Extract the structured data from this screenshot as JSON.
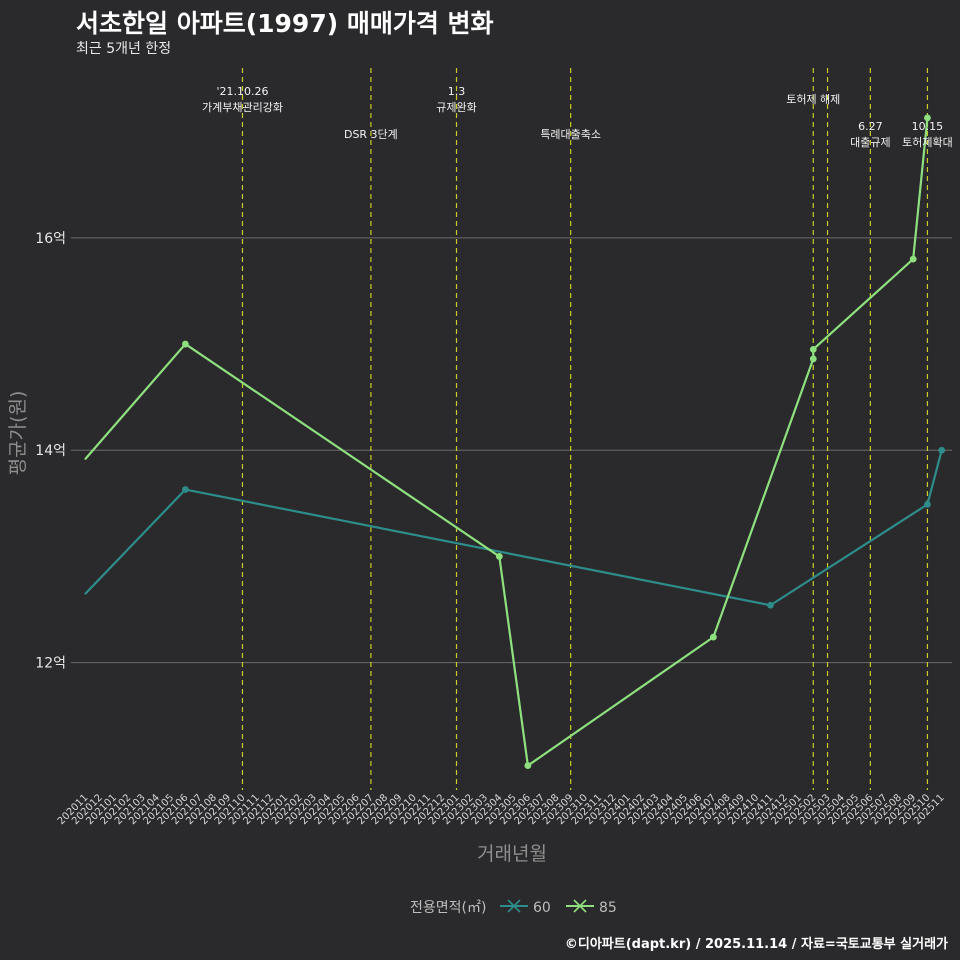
{
  "header": {
    "title": "서초한일 아파트(1997) 매매가격 변화",
    "subtitle": "최근 5개년 한정"
  },
  "caption": "©디아파트(dapt.kr) / 2025.11.14 / 자료=국토교통부 실거래가",
  "colors": {
    "background": "#2a2a2c",
    "grid": "#6a6a6a",
    "event_line": "#c8cc2a",
    "series_60": "#2e8c8a",
    "series_85": "#8ee07e"
  },
  "chart_data": {
    "type": "line",
    "title": "서초한일 아파트(1997) 매매가격 변화",
    "subtitle": "최근 5개년 한정",
    "xlabel": "거래년월",
    "ylabel": "평균가(원)",
    "categories": [
      "202011",
      "202012",
      "202101",
      "202102",
      "202103",
      "202104",
      "202105",
      "202106",
      "202107",
      "202108",
      "202109",
      "202110",
      "202111",
      "202112",
      "202201",
      "202202",
      "202203",
      "202204",
      "202205",
      "202206",
      "202207",
      "202208",
      "202209",
      "202210",
      "202211",
      "202212",
      "202301",
      "202302",
      "202303",
      "202304",
      "202305",
      "202306",
      "202307",
      "202308",
      "202309",
      "202310",
      "202311",
      "202312",
      "202401",
      "202402",
      "202403",
      "202404",
      "202405",
      "202406",
      "202407",
      "202408",
      "202409",
      "202410",
      "202411",
      "202412",
      "202501",
      "202502",
      "202503",
      "202504",
      "202505",
      "202506",
      "202507",
      "202508",
      "202509",
      "202510",
      "202511"
    ],
    "ylim": [
      10.8,
      17.6
    ],
    "yticks": [
      12,
      14,
      16
    ],
    "ytick_labels": [
      "12억",
      "14억",
      "16억"
    ],
    "grid": true,
    "legend": {
      "title": "전용면적(㎡)",
      "position": "bottom",
      "entries": [
        "60",
        "85"
      ]
    },
    "series": [
      {
        "name": "60",
        "color": "#2e8c8a",
        "points": [
          {
            "x": "202011",
            "y": 12.65,
            "marker": false
          },
          {
            "x": "202106",
            "y": 13.63,
            "marker": true
          },
          {
            "x": "202411",
            "y": 12.54,
            "marker": true
          },
          {
            "x": "202510",
            "y": 13.49,
            "marker": true
          },
          {
            "x": "202511",
            "y": 14.0,
            "marker": true
          }
        ]
      },
      {
        "name": "85",
        "color": "#8ee07e",
        "points": [
          {
            "x": "202011",
            "y": 13.92,
            "marker": false
          },
          {
            "x": "202106",
            "y": 15.0,
            "marker": true
          },
          {
            "x": "202304",
            "y": 13.0,
            "marker": true
          },
          {
            "x": "202306",
            "y": 11.03,
            "marker": true
          },
          {
            "x": "202407",
            "y": 12.24,
            "marker": true
          },
          {
            "x": "202502",
            "y": 14.86,
            "marker": true
          },
          {
            "x": "202502",
            "y": 14.95,
            "marker": true
          },
          {
            "x": "202509",
            "y": 15.8,
            "marker": true
          },
          {
            "x": "202510",
            "y": 17.13,
            "marker": true
          }
        ]
      }
    ],
    "annotations": [
      {
        "x": "202110",
        "lines": [
          "'21.10.26",
          "가계부채관리강화"
        ],
        "level": "top"
      },
      {
        "x": "202207",
        "lines": [
          "DSR 3단계"
        ],
        "level": "low"
      },
      {
        "x": "202301",
        "lines": [
          "1.3",
          "규제완화"
        ],
        "level": "top"
      },
      {
        "x": "202309",
        "lines": [
          "특례대출축소"
        ],
        "level": "low"
      },
      {
        "x": "202502",
        "lines": [
          "토허제 해제"
        ],
        "level": "mid"
      },
      {
        "x": "202503",
        "lines": [],
        "level": "none"
      },
      {
        "x": "202506",
        "lines": [
          "6.27",
          "대출규제"
        ],
        "level": "low"
      },
      {
        "x": "202510",
        "lines": [
          "10.15",
          "토허제확대"
        ],
        "level": "low"
      }
    ]
  }
}
